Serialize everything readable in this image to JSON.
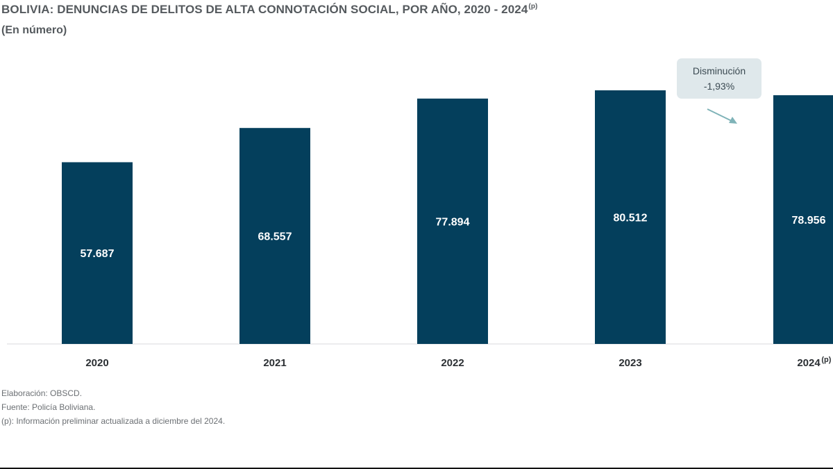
{
  "header": {
    "title": "BOLIVIA: DENUNCIAS DE DELITOS DE ALTA CONNOTACIÓN SOCIAL, POR AÑO, 2020 - 2024",
    "title_sup": "(p)",
    "subtitle": "(En número)"
  },
  "chart_data": {
    "type": "bar",
    "title": "BOLIVIA: DENUNCIAS DE DELITOS DE ALTA CONNOTACIÓN SOCIAL, POR AÑO, 2020 - 2024(p)",
    "subtitle": "(En número)",
    "categories": [
      "2020",
      "2021",
      "2022",
      "2023",
      "2024"
    ],
    "category_suffix": [
      "",
      "",
      "",
      "",
      "(p)"
    ],
    "values": [
      57687,
      68557,
      77894,
      80512,
      78956
    ],
    "value_labels": [
      "57.687",
      "68.557",
      "77.894",
      "80.512",
      "78.956"
    ],
    "xlabel": "",
    "ylabel": "",
    "ylim": [
      0,
      80512
    ],
    "grid": false,
    "bar_color": "#043f5c",
    "annotation": {
      "line1": "Disminución",
      "line2": "-1,93%",
      "arrow_color": "#7fb3b8"
    }
  },
  "notes": {
    "elaboracion": "Elaboración: OBSCD.",
    "fuente": "Fuente: Policía Boliviana.",
    "preliminar": "(p): Información preliminar actualizada a diciembre del 2024."
  }
}
